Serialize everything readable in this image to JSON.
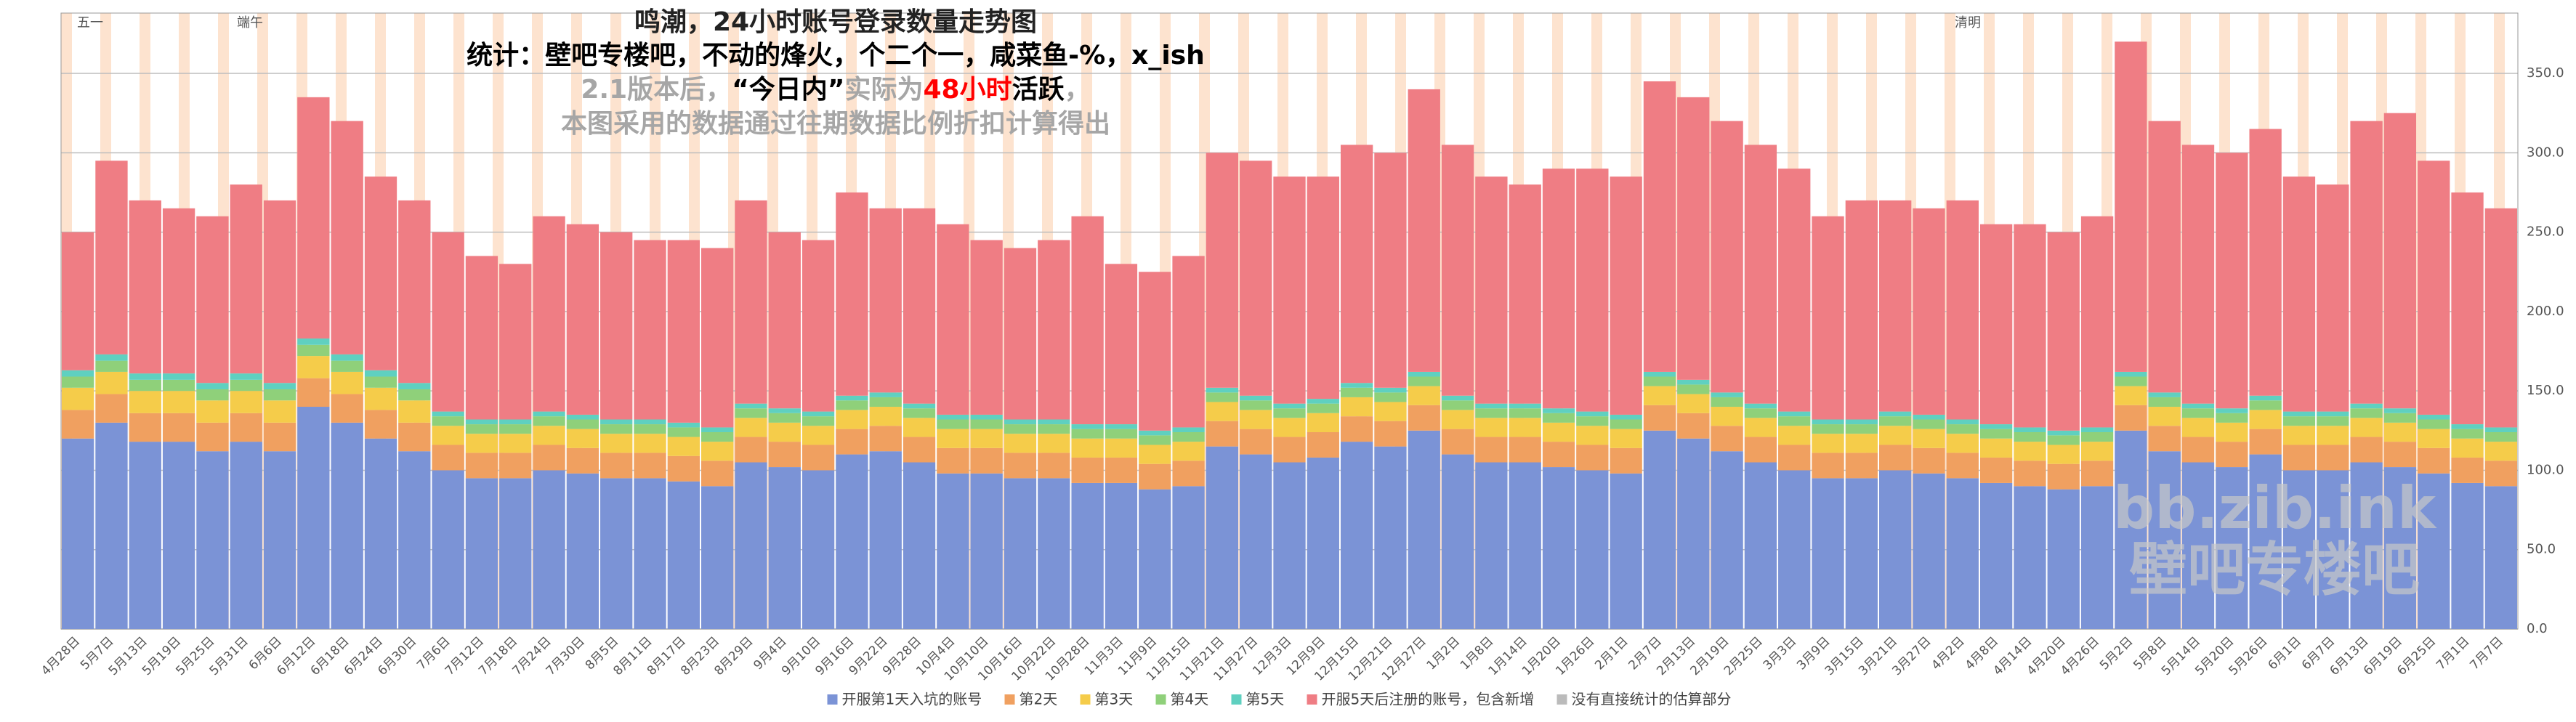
{
  "chart_data": {
    "type": "stacked_bar",
    "title": "鸣潮，24小时账号登录数量走势图",
    "subtitle": "统计：壁吧专楼吧，不动的烽火，个二个一，咸菜鱼-%，x_ish",
    "note_parts": [
      {
        "text": "2.1版本后，",
        "color": "#a6a6a6"
      },
      {
        "text": "“今日内”",
        "color": "#000000"
      },
      {
        "text": "实际为",
        "color": "#a6a6a6"
      },
      {
        "text": "48小时",
        "color": "#ff0000"
      },
      {
        "text": "活跃",
        "color": "#000000"
      },
      {
        "text": "，",
        "color": "#a6a6a6"
      }
    ],
    "note": "本图采用的数据通过往期数据比例折扣计算得出",
    "annotations": [
      "五一",
      "端午",
      "清明"
    ],
    "watermark": [
      "bb.zib.ink",
      "壁吧专楼吧"
    ],
    "categories": [
      "4月28日",
      "5月7日",
      "5月13日",
      "5月19日",
      "5月25日",
      "5月31日",
      "6月6日",
      "6月12日",
      "6月18日",
      "6月24日",
      "6月30日",
      "7月6日",
      "7月12日",
      "7月18日",
      "7月24日",
      "7月30日",
      "8月5日",
      "8月11日",
      "8月17日",
      "8月23日",
      "8月29日",
      "9月4日",
      "9月10日",
      "9月16日",
      "9月22日",
      "9月28日",
      "10月4日",
      "10月10日",
      "10月16日",
      "10月22日",
      "10月28日",
      "11月3日",
      "11月9日",
      "11月15日",
      "11月21日",
      "11月27日",
      "12月3日",
      "12月9日",
      "12月15日",
      "12月21日",
      "12月27日",
      "1月2日",
      "1月8日",
      "1月14日",
      "1月20日",
      "1月26日",
      "2月1日",
      "2月7日",
      "2月13日",
      "2月19日",
      "2月25日",
      "3月3日",
      "3月9日",
      "3月15日",
      "3月21日",
      "3月27日",
      "4月2日",
      "4月8日",
      "4月14日",
      "4月20日",
      "4月26日",
      "5月2日",
      "5月8日",
      "5月14日",
      "5月20日",
      "5月26日",
      "6月1日",
      "6月7日",
      "6月13日",
      "6月19日",
      "6月25日",
      "7月1日",
      "7月7日"
    ],
    "series": [
      {
        "name": "开服第1天入坑的账号",
        "color": "#7b93d6",
        "values": [
          120,
          130,
          118,
          118,
          112,
          118,
          112,
          140,
          130,
          120,
          112,
          100,
          95,
          95,
          100,
          98,
          95,
          95,
          93,
          90,
          105,
          102,
          100,
          110,
          112,
          105,
          98,
          98,
          95,
          95,
          92,
          92,
          88,
          90,
          115,
          110,
          105,
          108,
          118,
          115,
          125,
          110,
          105,
          105,
          102,
          100,
          98,
          125,
          120,
          112,
          105,
          100,
          95,
          95,
          100,
          98,
          95,
          92,
          90,
          88,
          90,
          125,
          112,
          105,
          102,
          110,
          100,
          100,
          105,
          102,
          98,
          92,
          90
        ]
      },
      {
        "name": "第2天",
        "color": "#f0a060",
        "values": [
          18,
          18,
          18,
          18,
          18,
          18,
          18,
          18,
          18,
          18,
          18,
          16,
          16,
          16,
          16,
          16,
          16,
          16,
          16,
          16,
          16,
          16,
          16,
          16,
          16,
          16,
          16,
          16,
          16,
          16,
          16,
          16,
          16,
          16,
          16,
          16,
          16,
          16,
          16,
          16,
          16,
          16,
          16,
          16,
          16,
          16,
          16,
          16,
          16,
          16,
          16,
          16,
          16,
          16,
          16,
          16,
          16,
          16,
          16,
          16,
          16,
          16,
          16,
          16,
          16,
          16,
          16,
          16,
          16,
          16,
          16,
          16,
          16
        ]
      },
      {
        "name": "第3天",
        "color": "#f5cc4a",
        "values": [
          14,
          14,
          14,
          14,
          14,
          14,
          14,
          14,
          14,
          14,
          14,
          12,
          12,
          12,
          12,
          12,
          12,
          12,
          12,
          12,
          12,
          12,
          12,
          12,
          12,
          12,
          12,
          12,
          12,
          12,
          12,
          12,
          12,
          12,
          12,
          12,
          12,
          12,
          12,
          12,
          12,
          12,
          12,
          12,
          12,
          12,
          12,
          12,
          12,
          12,
          12,
          12,
          12,
          12,
          12,
          12,
          12,
          12,
          12,
          12,
          12,
          12,
          12,
          12,
          12,
          12,
          12,
          12,
          12,
          12,
          12,
          12,
          12
        ]
      },
      {
        "name": "第4天",
        "color": "#8fd07a",
        "values": [
          7,
          7,
          7,
          7,
          7,
          7,
          7,
          7,
          7,
          7,
          7,
          6,
          6,
          6,
          6,
          6,
          6,
          6,
          6,
          6,
          6,
          6,
          6,
          6,
          6,
          6,
          6,
          6,
          6,
          6,
          6,
          6,
          6,
          6,
          6,
          6,
          6,
          6,
          6,
          6,
          6,
          6,
          6,
          6,
          6,
          6,
          6,
          6,
          6,
          6,
          6,
          6,
          6,
          6,
          6,
          6,
          6,
          6,
          6,
          6,
          6,
          6,
          6,
          6,
          6,
          6,
          6,
          6,
          6,
          6,
          6,
          6,
          6
        ]
      },
      {
        "name": "第5天",
        "color": "#5fd0c0",
        "values": [
          4,
          4,
          4,
          4,
          4,
          4,
          4,
          4,
          4,
          4,
          4,
          3,
          3,
          3,
          3,
          3,
          3,
          3,
          3,
          3,
          3,
          3,
          3,
          3,
          3,
          3,
          3,
          3,
          3,
          3,
          3,
          3,
          3,
          3,
          3,
          3,
          3,
          3,
          3,
          3,
          3,
          3,
          3,
          3,
          3,
          3,
          3,
          3,
          3,
          3,
          3,
          3,
          3,
          3,
          3,
          3,
          3,
          3,
          3,
          3,
          3,
          3,
          3,
          3,
          3,
          3,
          3,
          3,
          3,
          3,
          3,
          3,
          3
        ]
      },
      {
        "name": "开服5天后注册的账号，包含新增",
        "color": "#ef7d84",
        "values": [
          87,
          122,
          109,
          104,
          105,
          119,
          115,
          152,
          147,
          122,
          115,
          113,
          103,
          98,
          123,
          120,
          118,
          113,
          115,
          113,
          128,
          111,
          108,
          128,
          116,
          123,
          120,
          110,
          108,
          113,
          131,
          101,
          100,
          108,
          148,
          148,
          143,
          140,
          150,
          148,
          178,
          158,
          143,
          138,
          151,
          153,
          150,
          183,
          178,
          171,
          163,
          153,
          128,
          138,
          133,
          130,
          138,
          126,
          128,
          125,
          133,
          208,
          171,
          163,
          161,
          168,
          148,
          143,
          178,
          186,
          160,
          146,
          138
        ]
      },
      {
        "name": "没有直接统计的估算部分",
        "color": "#bbbbbb",
        "values": [
          0,
          0,
          0,
          0,
          0,
          0,
          0,
          0,
          0,
          0,
          0,
          0,
          0,
          0,
          0,
          0,
          0,
          0,
          0,
          0,
          0,
          0,
          0,
          0,
          0,
          0,
          0,
          0,
          0,
          0,
          0,
          0,
          0,
          0,
          0,
          0,
          0,
          0,
          0,
          0,
          0,
          0,
          0,
          0,
          0,
          0,
          0,
          0,
          0,
          0,
          0,
          0,
          0,
          0,
          0,
          0,
          0,
          0,
          0,
          0,
          0,
          0,
          0,
          0,
          0,
          0,
          0,
          0,
          0,
          0,
          0,
          0,
          0
        ]
      }
    ],
    "ylim": [
      0,
      388
    ],
    "yticks": [
      {
        "value": 0,
        "label": "0.0"
      },
      {
        "value": 50,
        "label": "50.0"
      },
      {
        "value": 100,
        "label": "100.0"
      },
      {
        "value": 150,
        "label": "150.0"
      },
      {
        "value": 200,
        "label": "200.0"
      },
      {
        "value": 250,
        "label": "250.0"
      },
      {
        "value": 300,
        "label": "300.0"
      },
      {
        "value": 350,
        "label": "350.0"
      }
    ],
    "grid": true
  }
}
